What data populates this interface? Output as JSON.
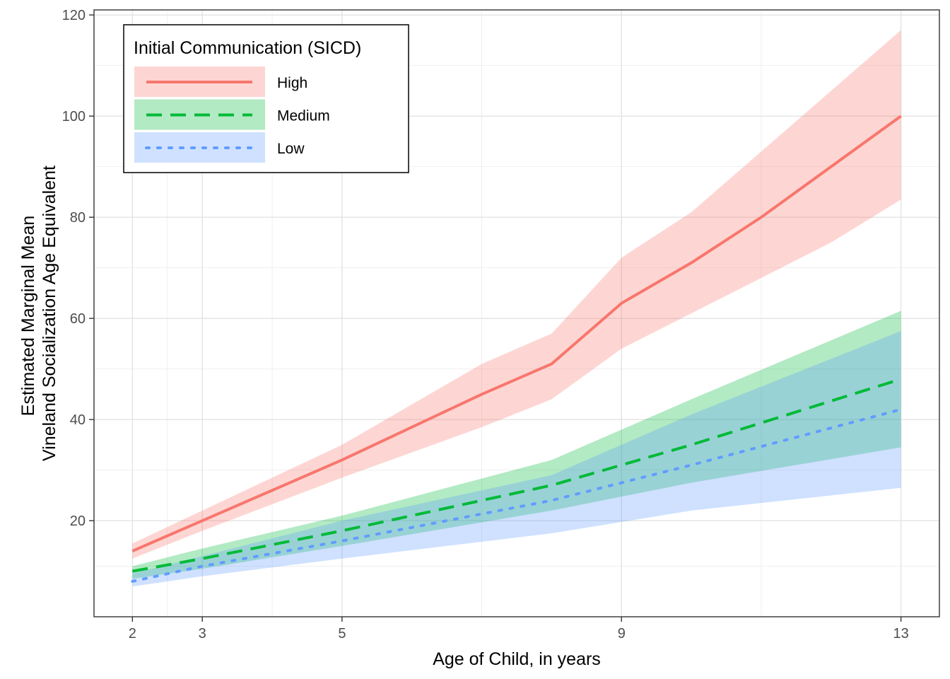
{
  "chart_data": {
    "type": "line",
    "xlabel": "Age of Child, in years",
    "ylabel_lines": [
      "Estimated Marginal Mean",
      "Vineland Socialization Age Equivalent"
    ],
    "x_ticks": [
      2,
      3,
      5,
      9,
      13
    ],
    "y_ticks": [
      20,
      40,
      60,
      80,
      100,
      120
    ],
    "xlim": [
      1.45,
      13.55
    ],
    "ylim": [
      1,
      121
    ],
    "grid": true,
    "legend_position": "top-left",
    "legend_title": "Initial Communication (SICD)",
    "series": [
      {
        "name": "High",
        "color": "#F8766D",
        "line_style": "solid",
        "x": [
          2,
          3,
          5,
          7,
          8,
          9,
          10,
          11,
          12,
          13
        ],
        "y": [
          14,
          20,
          32,
          45,
          51,
          63,
          71,
          80,
          90,
          100
        ],
        "lower": [
          12.5,
          18,
          28.5,
          38.5,
          44,
          54,
          61,
          68,
          75,
          83.5
        ],
        "upper": [
          15.5,
          22,
          35,
          51,
          57,
          72,
          81,
          93,
          105,
          117
        ]
      },
      {
        "name": "Medium",
        "color": "#00BA38",
        "line_style": "dashed",
        "x": [
          2,
          3,
          5,
          8,
          10,
          13
        ],
        "y": [
          10,
          12.5,
          18,
          27,
          35,
          48
        ],
        "lower": [
          8.5,
          10.5,
          15,
          22,
          27.5,
          34.5
        ],
        "upper": [
          11,
          14.5,
          21,
          32,
          44,
          61.5
        ]
      },
      {
        "name": "Low",
        "color": "#619CFF",
        "line_style": "dotted",
        "x": [
          2,
          3,
          5,
          8,
          10,
          13
        ],
        "y": [
          8,
          11,
          16,
          24,
          31,
          42
        ],
        "lower": [
          7,
          9,
          12.5,
          17.5,
          22,
          26.5
        ],
        "upper": [
          9.5,
          13,
          20,
          29,
          41,
          57.5
        ]
      }
    ]
  }
}
